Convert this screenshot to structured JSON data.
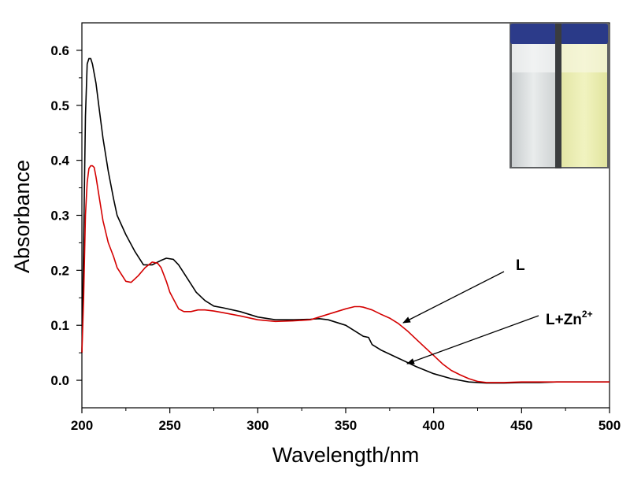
{
  "chart_data": {
    "type": "line",
    "xlabel": "Wavelength/nm",
    "ylabel": "Absorbance",
    "xlim": [
      200,
      500
    ],
    "ylim": [
      -0.05,
      0.65
    ],
    "x_ticks": [
      200,
      250,
      300,
      350,
      400,
      450,
      500
    ],
    "y_ticks": [
      0.0,
      0.1,
      0.2,
      0.3,
      0.4,
      0.5,
      0.6
    ],
    "y_tick_labels": [
      "0.0",
      "0.1",
      "0.2",
      "0.3",
      "0.4",
      "0.5",
      "0.6"
    ],
    "grid": false,
    "series": [
      {
        "name": "L",
        "color": "#000000",
        "x": [
          200,
          201,
          202,
          203,
          204,
          205,
          206,
          208,
          210,
          212,
          215,
          218,
          220,
          225,
          230,
          235,
          240,
          245,
          248,
          252,
          255,
          260,
          265,
          270,
          275,
          280,
          290,
          300,
          310,
          320,
          330,
          335,
          340,
          345,
          350,
          355,
          360,
          363,
          365,
          370,
          380,
          390,
          400,
          410,
          420,
          430,
          440,
          450,
          460,
          470,
          480,
          490,
          500
        ],
        "y": [
          0.05,
          0.25,
          0.48,
          0.575,
          0.585,
          0.585,
          0.575,
          0.54,
          0.49,
          0.44,
          0.38,
          0.33,
          0.3,
          0.265,
          0.235,
          0.21,
          0.21,
          0.218,
          0.222,
          0.22,
          0.21,
          0.185,
          0.16,
          0.145,
          0.135,
          0.132,
          0.125,
          0.115,
          0.11,
          0.11,
          0.111,
          0.112,
          0.11,
          0.105,
          0.1,
          0.09,
          0.08,
          0.078,
          0.065,
          0.055,
          0.04,
          0.025,
          0.012,
          0.003,
          -0.003,
          -0.005,
          -0.005,
          -0.004,
          -0.004,
          -0.003,
          -0.003,
          -0.003,
          -0.003
        ]
      },
      {
        "name": "L+Zn2+",
        "color": "#d40000",
        "x": [
          200,
          201,
          202,
          203,
          204,
          205,
          206,
          207,
          208,
          210,
          212,
          215,
          218,
          220,
          225,
          228,
          232,
          236,
          240,
          243,
          245,
          248,
          250,
          255,
          258,
          262,
          266,
          270,
          275,
          280,
          290,
          300,
          310,
          320,
          330,
          340,
          350,
          355,
          358,
          360,
          365,
          370,
          375,
          380,
          385,
          390,
          395,
          400,
          405,
          410,
          415,
          420,
          425,
          430,
          440,
          450,
          460,
          470,
          500
        ],
        "y": [
          0.05,
          0.15,
          0.3,
          0.36,
          0.385,
          0.39,
          0.39,
          0.387,
          0.37,
          0.33,
          0.29,
          0.25,
          0.225,
          0.205,
          0.18,
          0.178,
          0.19,
          0.205,
          0.215,
          0.213,
          0.205,
          0.18,
          0.16,
          0.13,
          0.125,
          0.125,
          0.128,
          0.128,
          0.126,
          0.123,
          0.117,
          0.11,
          0.107,
          0.108,
          0.11,
          0.12,
          0.13,
          0.134,
          0.134,
          0.133,
          0.128,
          0.12,
          0.113,
          0.103,
          0.09,
          0.075,
          0.06,
          0.045,
          0.03,
          0.018,
          0.01,
          0.003,
          -0.002,
          -0.004,
          -0.004,
          -0.003,
          -0.003,
          -0.003,
          -0.003
        ]
      }
    ],
    "annotations": [
      {
        "text": "L",
        "points_to": {
          "x": 382,
          "y": 0.107
        }
      },
      {
        "text": "L+Zn",
        "superscript": "2+",
        "points_to": {
          "x": 391,
          "y": 0.034
        }
      }
    ],
    "inset": {
      "description_free": true
    }
  }
}
